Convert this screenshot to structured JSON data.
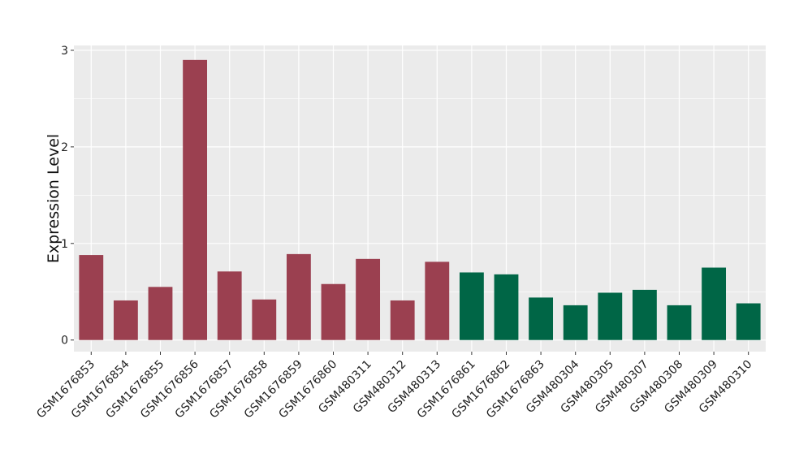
{
  "chart_data": {
    "type": "bar",
    "title": "",
    "xlabel": "",
    "ylabel": "Expression Level",
    "ylim": [
      -0.12,
      3.05
    ],
    "yticks": [
      0,
      1,
      2,
      3
    ],
    "grid": true,
    "legend": "none",
    "categories": [
      "GSM1676853",
      "GSM1676854",
      "GSM1676855",
      "GSM1676856",
      "GSM1676857",
      "GSM1676858",
      "GSM1676859",
      "GSM1676860",
      "GSM480311",
      "GSM480312",
      "GSM480313",
      "GSM1676861",
      "GSM1676862",
      "GSM1676863",
      "GSM480304",
      "GSM480305",
      "GSM480307",
      "GSM480308",
      "GSM480309",
      "GSM480310"
    ],
    "values": [
      0.88,
      0.41,
      0.55,
      2.9,
      0.71,
      0.42,
      0.89,
      0.58,
      0.84,
      0.41,
      0.81,
      0.7,
      0.68,
      0.44,
      0.36,
      0.49,
      0.52,
      0.36,
      0.75,
      0.38
    ],
    "groups": [
      0,
      0,
      0,
      0,
      0,
      0,
      0,
      0,
      0,
      0,
      0,
      1,
      1,
      1,
      1,
      1,
      1,
      1,
      1,
      1
    ],
    "group_colors": [
      "#9b4050",
      "#006646"
    ],
    "panel_color": "#ebebeb",
    "grid_color": "#ffffff"
  }
}
